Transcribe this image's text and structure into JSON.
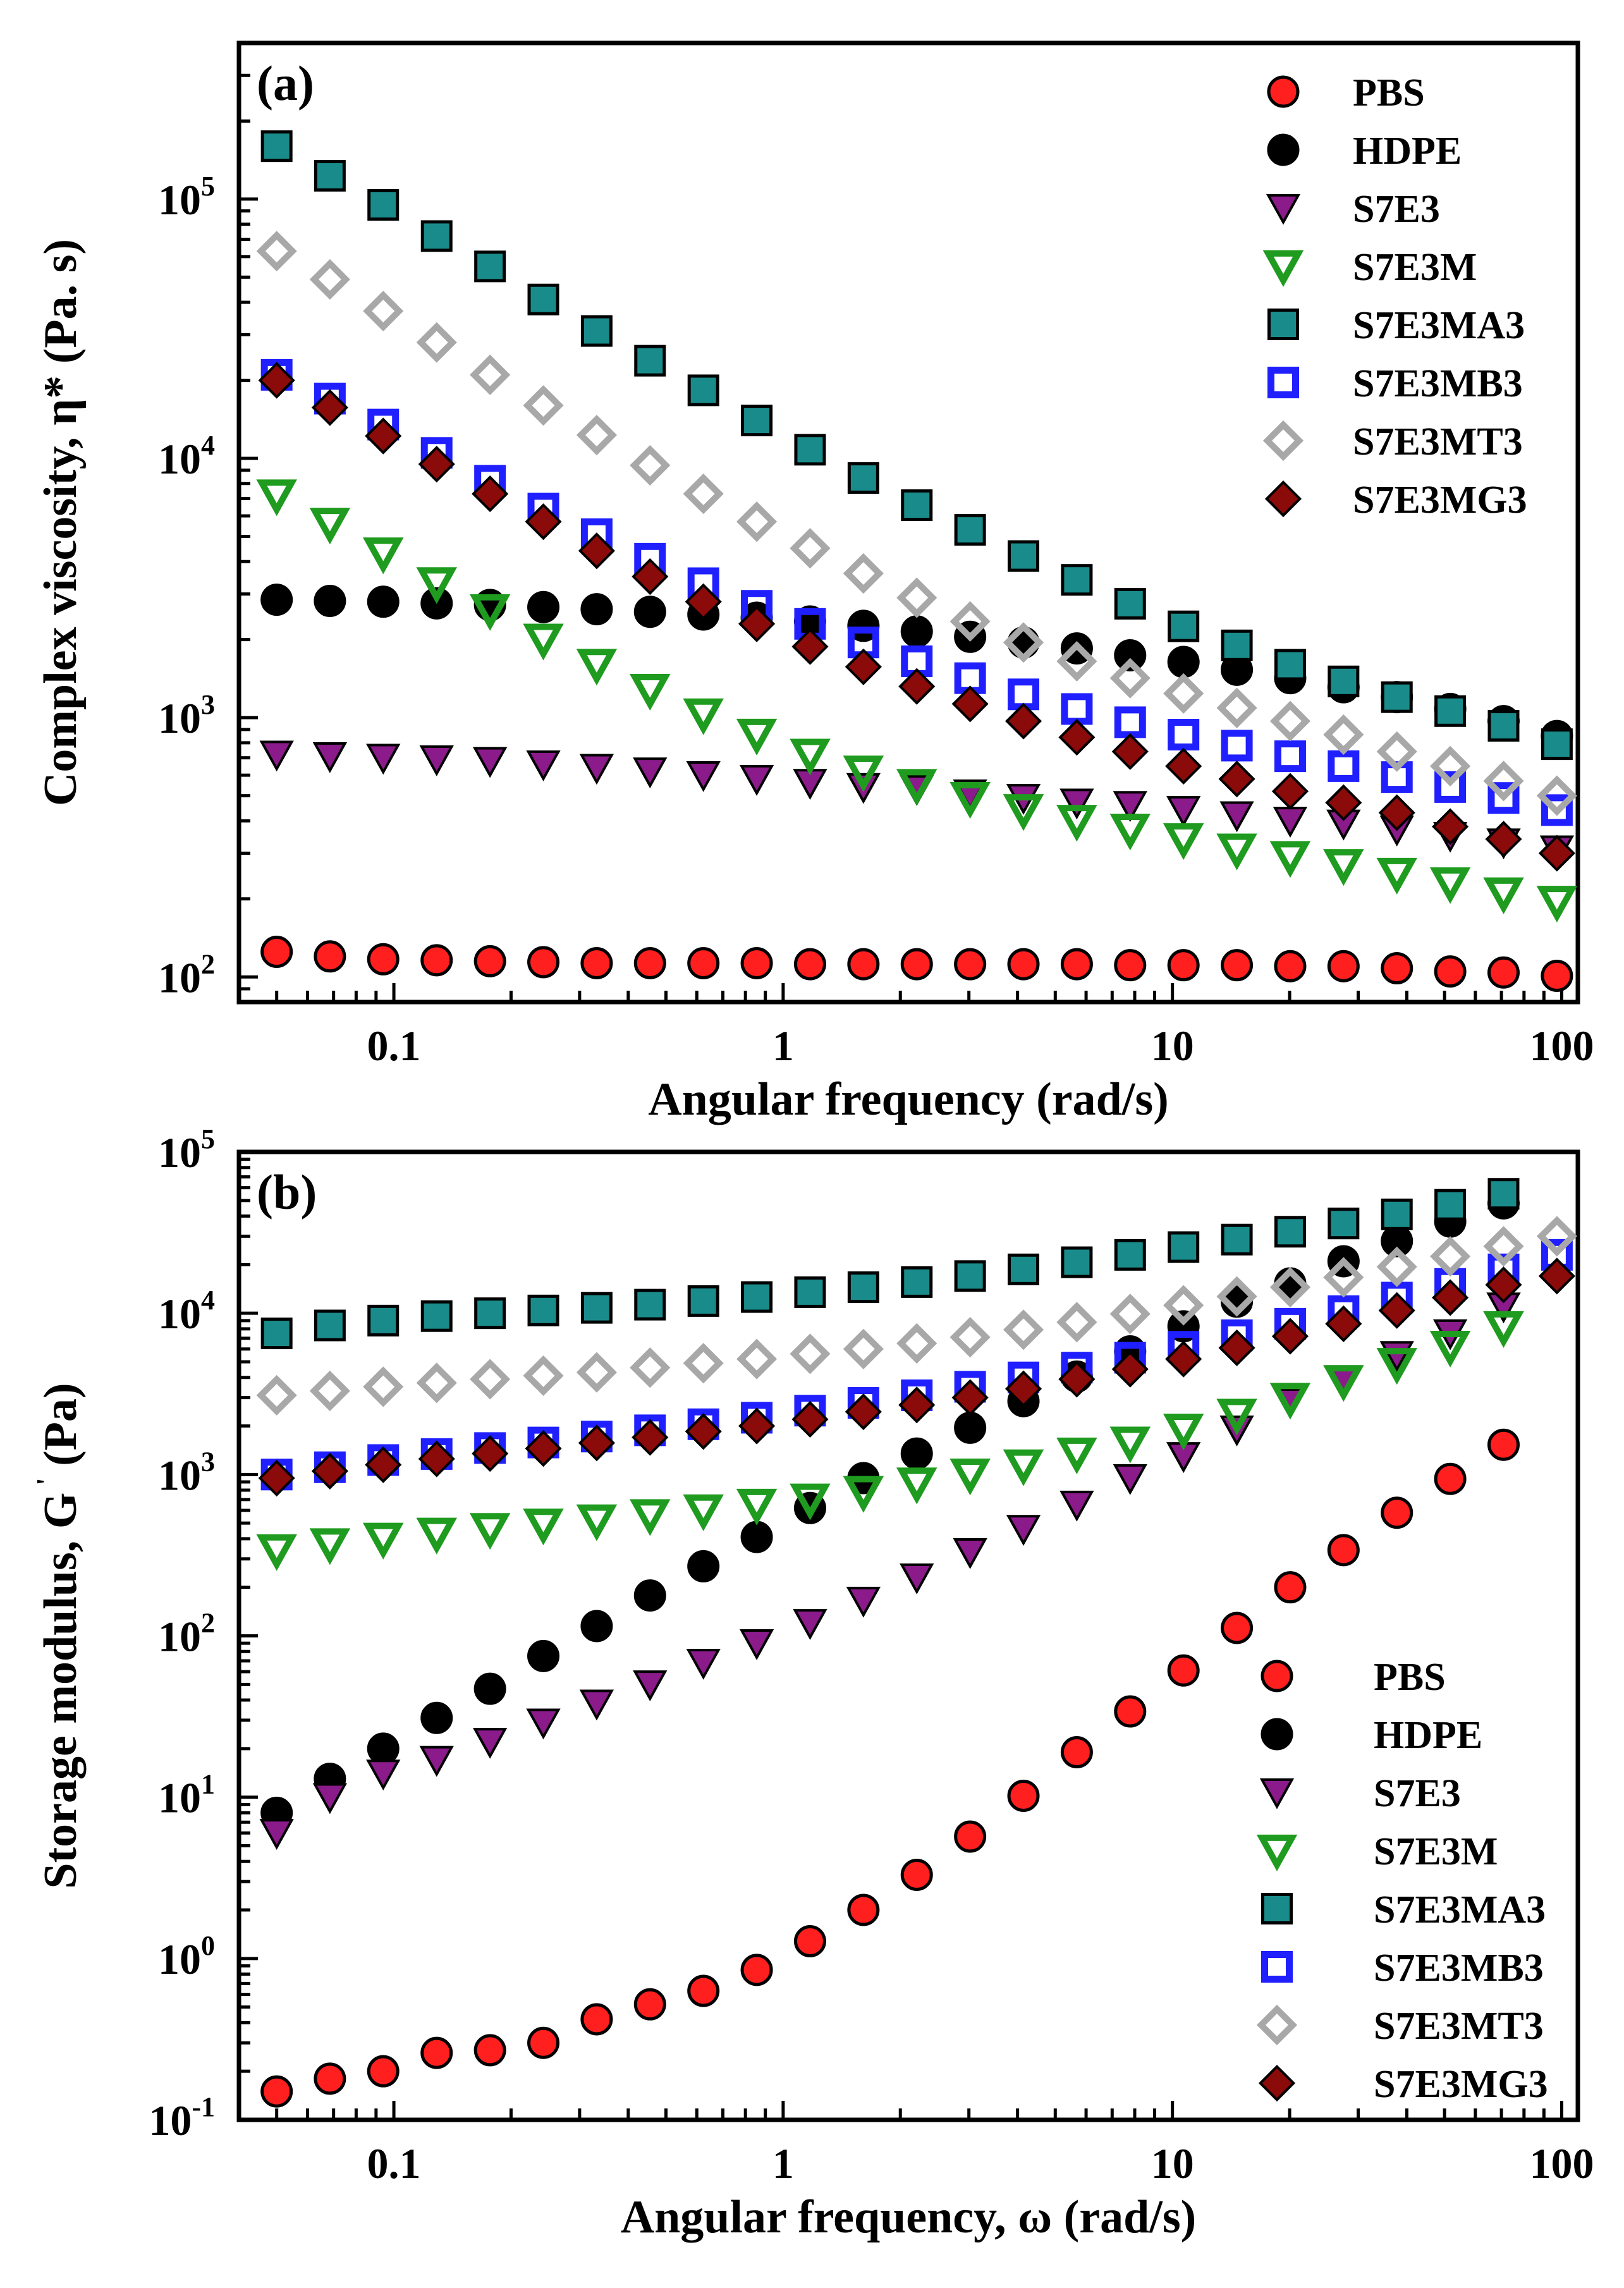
{
  "colors": {
    "PBS": "#ff1f1f",
    "HDPE": "#000000",
    "S7E3": "#8b1a8b",
    "S7E3M": "#1f9b1f",
    "S7E3MA3": "#1a8b8b",
    "S7E3MB3": "#1f1fff",
    "S7E3MT3": "#a8a8a8",
    "S7E3MG3": "#8b0a0a"
  },
  "chart_data": [
    {
      "type": "scatter",
      "panel_label": "(a)",
      "title": "",
      "xlabel": "Angular frequency (rad/s)",
      "ylabel": "Complex viscosity, η* (Pa.   s)",
      "xscale": "log",
      "yscale": "log",
      "xlim": [
        0.04,
        110
      ],
      "ylim": [
        80,
        400000
      ],
      "xticks": [
        {
          "v": 0.1,
          "label": "0.1"
        },
        {
          "v": 1,
          "label": "1"
        },
        {
          "v": 10,
          "label": "10"
        },
        {
          "v": 100,
          "label": "100"
        }
      ],
      "yticks": [
        {
          "v": 100,
          "base": "10",
          "exp": "2"
        },
        {
          "v": 1000,
          "base": "10",
          "exp": "3"
        },
        {
          "v": 10000,
          "base": "10",
          "exp": "4"
        },
        {
          "v": 100000,
          "base": "10",
          "exp": "5"
        }
      ],
      "legend_position": "top-right",
      "x": [
        0.05,
        0.0685,
        0.0939,
        0.1288,
        0.1766,
        0.2421,
        0.3319,
        0.455,
        0.6239,
        0.8553,
        1.1726,
        1.6077,
        2.2041,
        3.0219,
        4.1429,
        5.6798,
        7.7866,
        10.676,
        14.637,
        20.066,
        27.51,
        37.716,
        51.706,
        70.889,
        97.188
      ],
      "series": [
        {
          "name": "PBS",
          "marker": "circle",
          "values": [
            125,
            120,
            117,
            116,
            115,
            114,
            113,
            113,
            113,
            113,
            112,
            112,
            112,
            112,
            112,
            112,
            111,
            111,
            111,
            110,
            110,
            108,
            105,
            104,
            101
          ]
        },
        {
          "name": "HDPE",
          "marker": "circle",
          "values": [
            2850,
            2820,
            2800,
            2760,
            2720,
            2670,
            2620,
            2560,
            2500,
            2430,
            2350,
            2260,
            2150,
            2050,
            1950,
            1850,
            1740,
            1640,
            1530,
            1420,
            1310,
            1200,
            1080,
            970,
            850
          ]
        },
        {
          "name": "S7E3",
          "marker": "triangle-down",
          "values": [
            720,
            710,
            700,
            690,
            680,
            660,
            640,
            620,
            600,
            580,
            560,
            540,
            530,
            510,
            490,
            470,
            460,
            440,
            420,
            400,
            390,
            370,
            350,
            330,
            310
          ]
        },
        {
          "name": "S7E3M",
          "marker": "triangle-down-open",
          "values": [
            7200,
            5600,
            4300,
            3300,
            2600,
            2000,
            1600,
            1280,
            1030,
            860,
            720,
            620,
            550,
            490,
            440,
            400,
            370,
            340,
            310,
            290,
            270,
            250,
            230,
            210,
            195
          ]
        },
        {
          "name": "S7E3MA3",
          "marker": "square",
          "values": [
            160000,
            123000,
            95000,
            72000,
            55000,
            41000,
            31000,
            23800,
            18300,
            14000,
            10800,
            8400,
            6600,
            5300,
            4200,
            3400,
            2750,
            2250,
            1900,
            1600,
            1380,
            1200,
            1060,
            930,
            790
          ]
        },
        {
          "name": "S7E3MB3",
          "marker": "square-open",
          "values": [
            21000,
            17000,
            13500,
            10500,
            8200,
            6400,
            5100,
            4100,
            3300,
            2700,
            2300,
            1950,
            1650,
            1420,
            1230,
            1080,
            960,
            860,
            780,
            710,
            650,
            590,
            540,
            490,
            440
          ]
        },
        {
          "name": "S7E3MT3",
          "marker": "diamond-open",
          "values": [
            63000,
            49000,
            37000,
            28000,
            21000,
            16000,
            12300,
            9400,
            7300,
            5700,
            4500,
            3600,
            2900,
            2350,
            1950,
            1650,
            1420,
            1240,
            1090,
            970,
            860,
            740,
            650,
            570,
            500
          ]
        },
        {
          "name": "S7E3MG3",
          "marker": "diamond",
          "values": [
            20000,
            15700,
            12200,
            9500,
            7300,
            5700,
            4400,
            3500,
            2800,
            2300,
            1880,
            1570,
            1320,
            1130,
            970,
            840,
            740,
            650,
            580,
            520,
            470,
            430,
            380,
            340,
            300
          ]
        }
      ]
    },
    {
      "type": "scatter",
      "panel_label": "(b)",
      "title": "",
      "xlabel": "Angular frequency, ω (rad/s)",
      "ylabel": "Storage modulus, G' (Pa)",
      "ylabel_main": "Storage modulus, G",
      "ylabel_prime": "'",
      "ylabel_unit": "(Pa)",
      "xscale": "log",
      "yscale": "log",
      "xlim": [
        0.04,
        110
      ],
      "ylim": [
        0.1,
        100000
      ],
      "xticks": [
        {
          "v": 0.1,
          "label": "0.1"
        },
        {
          "v": 1,
          "label": "1"
        },
        {
          "v": 10,
          "label": "10"
        },
        {
          "v": 100,
          "label": "100"
        }
      ],
      "yticks": [
        {
          "v": 0.1,
          "base": "10",
          "exp": "-1"
        },
        {
          "v": 1,
          "base": "10",
          "exp": "0"
        },
        {
          "v": 10,
          "base": "10",
          "exp": "1"
        },
        {
          "v": 100,
          "base": "10",
          "exp": "2"
        },
        {
          "v": 1000,
          "base": "10",
          "exp": "3"
        },
        {
          "v": 10000,
          "base": "10",
          "exp": "4"
        },
        {
          "v": 100000,
          "base": "10",
          "exp": "5"
        }
      ],
      "legend_position": "bottom-right",
      "x": [
        0.05,
        0.0685,
        0.0939,
        0.1288,
        0.1766,
        0.2421,
        0.3319,
        0.455,
        0.6239,
        0.8553,
        1.1726,
        1.6077,
        2.2041,
        3.0219,
        4.1429,
        5.6798,
        7.7866,
        10.676,
        14.637,
        20.066,
        27.51,
        37.716,
        51.706,
        70.889,
        97.188
      ],
      "series": [
        {
          "name": "PBS",
          "marker": "circle",
          "values": [
            0.15,
            0.18,
            0.2,
            0.26,
            0.27,
            0.3,
            0.42,
            0.52,
            0.63,
            0.85,
            1.28,
            2.0,
            3.3,
            5.7,
            10.2,
            19.0,
            34,
            61,
            112,
            200,
            340,
            580,
            940,
            1530,
            null
          ]
        },
        {
          "name": "HDPE",
          "marker": "circle",
          "values": [
            8,
            13,
            20,
            31,
            47,
            75,
            115,
            178,
            270,
            410,
            620,
            950,
            1350,
            1950,
            2850,
            4050,
            5800,
            8300,
            11800,
            15300,
            21000,
            28000,
            37000,
            48000,
            null
          ]
        },
        {
          "name": "S7E3",
          "marker": "triangle-down",
          "values": [
            6,
            10,
            14,
            17,
            22,
            29,
            38,
            50,
            68,
            90,
            120,
            165,
            230,
            330,
            460,
            650,
            950,
            1300,
            1900,
            2800,
            3900,
            5500,
            7500,
            11000,
            null
          ]
        },
        {
          "name": "S7E3M",
          "marker": "triangle-down-open",
          "values": [
            340,
            370,
            400,
            430,
            460,
            490,
            520,
            560,
            600,
            650,
            700,
            780,
            880,
            1000,
            1140,
            1350,
            1580,
            1900,
            2350,
            2950,
            3800,
            4850,
            6200,
            8200,
            null
          ]
        },
        {
          "name": "S7E3MA3",
          "marker": "square",
          "values": [
            7500,
            8400,
            9000,
            9600,
            10000,
            10400,
            10800,
            11300,
            11900,
            12600,
            13500,
            14500,
            15600,
            17000,
            18700,
            20700,
            23000,
            25700,
            28600,
            32000,
            36000,
            41000,
            47000,
            55000,
            null
          ]
        },
        {
          "name": "S7E3MB3",
          "marker": "square-open",
          "values": [
            1000,
            1110,
            1230,
            1340,
            1460,
            1580,
            1720,
            1880,
            2050,
            2250,
            2490,
            2780,
            3100,
            3500,
            4000,
            4600,
            5300,
            6200,
            7300,
            8600,
            10300,
            12500,
            15200,
            18700,
            23000
          ]
        },
        {
          "name": "S7E3MT3",
          "marker": "diamond-open",
          "values": [
            3100,
            3300,
            3500,
            3700,
            3900,
            4100,
            4300,
            4600,
            4900,
            5200,
            5600,
            6000,
            6500,
            7100,
            7900,
            8800,
            9900,
            11200,
            12700,
            14500,
            16700,
            19400,
            22500,
            26000,
            30000
          ]
        },
        {
          "name": "S7E3MG3",
          "marker": "diamond",
          "values": [
            950,
            1050,
            1150,
            1250,
            1350,
            1450,
            1570,
            1700,
            1850,
            2000,
            2200,
            2450,
            2700,
            3000,
            3400,
            3900,
            4500,
            5200,
            6100,
            7200,
            8600,
            10400,
            12500,
            15000,
            17000
          ]
        }
      ]
    }
  ]
}
